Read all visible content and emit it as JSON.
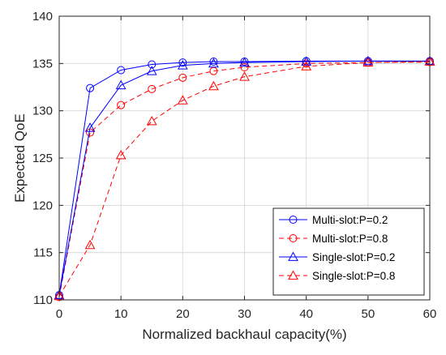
{
  "chart_data": {
    "type": "line",
    "title": "",
    "xlabel": "Normalized backhaul capacity(%)",
    "ylabel": "Expected QoE",
    "xlim": [
      0,
      60
    ],
    "ylim": [
      110,
      140
    ],
    "xticks": [
      0,
      10,
      20,
      30,
      40,
      50,
      60
    ],
    "yticks": [
      110,
      115,
      120,
      125,
      130,
      135,
      140
    ],
    "grid": true,
    "legend_position": "bottom-right",
    "series": [
      {
        "name": "Multi-slot:P=0.2",
        "color": "#0000ff",
        "line_style": "solid",
        "marker": "circle",
        "x": [
          0,
          5,
          10,
          15,
          20,
          25,
          30,
          40,
          50,
          60
        ],
        "y": [
          110.5,
          132.4,
          134.3,
          134.9,
          135.1,
          135.2,
          135.2,
          135.25,
          135.25,
          135.25
        ]
      },
      {
        "name": "Multi-slot:P=0.8",
        "color": "#ff0000",
        "line_style": "dashed",
        "marker": "circle",
        "x": [
          0,
          5,
          10,
          15,
          20,
          25,
          30,
          40,
          50,
          60
        ],
        "y": [
          110.3,
          127.7,
          130.6,
          132.3,
          133.5,
          134.2,
          134.6,
          135.0,
          135.1,
          135.15
        ]
      },
      {
        "name": "Single-slot:P=0.2",
        "color": "#0000ff",
        "line_style": "solid",
        "marker": "triangle",
        "x": [
          0,
          5,
          10,
          15,
          20,
          25,
          30,
          40,
          50,
          60
        ],
        "y": [
          110.5,
          128.2,
          132.7,
          134.2,
          134.8,
          135.0,
          135.1,
          135.2,
          135.25,
          135.25
        ]
      },
      {
        "name": "Single-slot:P=0.8",
        "color": "#ff0000",
        "line_style": "dashed",
        "marker": "triangle",
        "x": [
          0,
          5,
          10,
          15,
          20,
          25,
          30,
          40,
          50,
          60
        ],
        "y": [
          110.4,
          115.8,
          125.3,
          128.9,
          131.1,
          132.6,
          133.6,
          134.7,
          135.1,
          135.2
        ]
      }
    ]
  }
}
